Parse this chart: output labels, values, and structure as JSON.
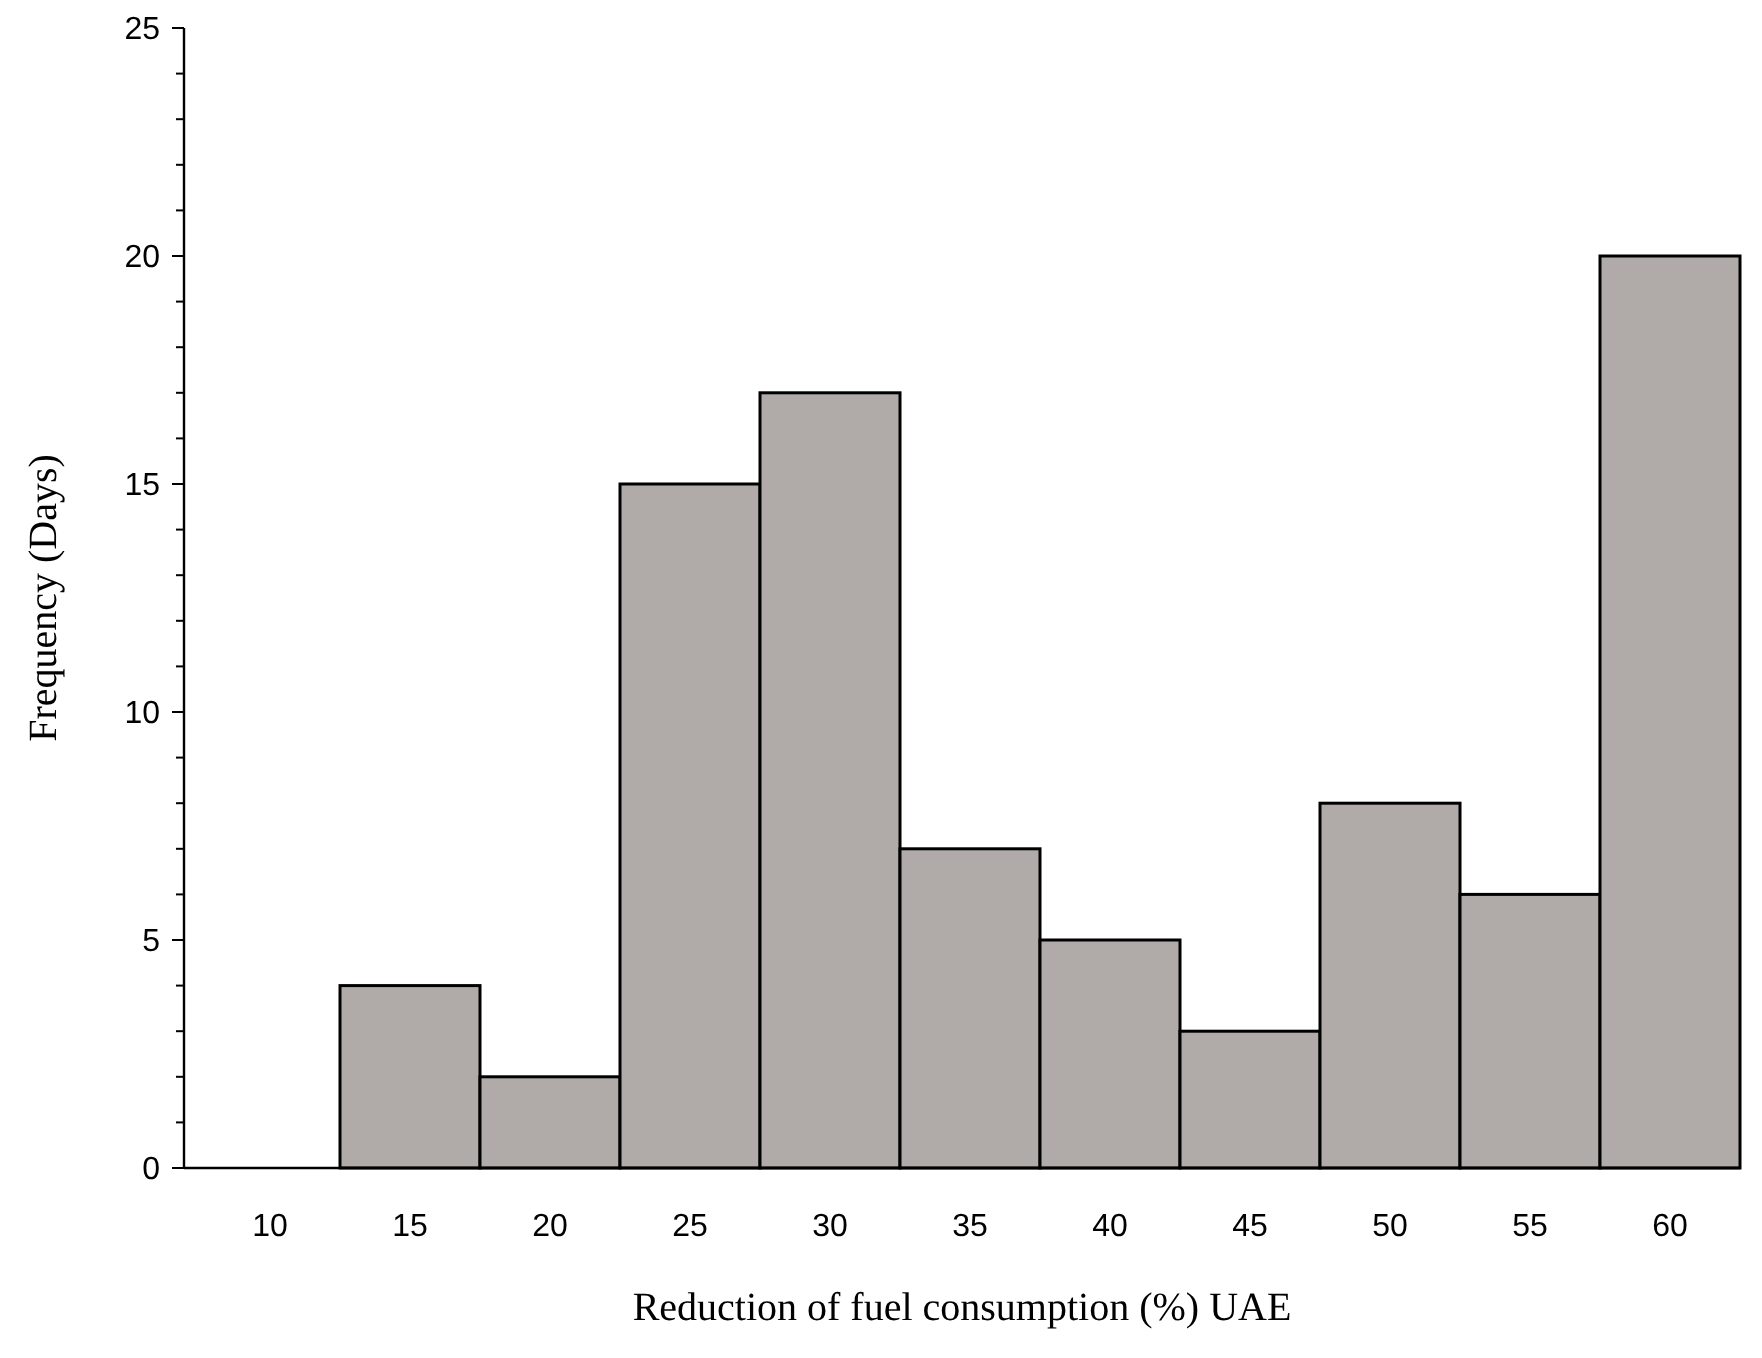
{
  "chart_data": {
    "type": "bar",
    "xlabel": "Reduction of fuel consumption (%) UAE",
    "ylabel": "Frequency (Days)",
    "categories": [
      "10",
      "15",
      "20",
      "25",
      "30",
      "35",
      "40",
      "45",
      "50",
      "55",
      "60"
    ],
    "values": [
      0,
      4,
      2,
      15,
      17,
      7,
      5,
      3,
      8,
      6,
      20
    ],
    "color": "#b0aba8",
    "ylim": [
      0,
      25
    ],
    "yticks": [
      0,
      {
        "value": 1,
        "label": null
      },
      {
        "value": 2,
        "label": null
      },
      {
        "value": 3,
        "label": null
      },
      {
        "value": 4,
        "label": null
      },
      5,
      {
        "value": 6,
        "label": null
      },
      {
        "value": 7,
        "label": null
      },
      {
        "value": 8,
        "label": null
      },
      {
        "value": 9,
        "label": null
      },
      10,
      {
        "value": 11,
        "label": null
      },
      {
        "value": 12,
        "label": null
      },
      {
        "value": 13,
        "label": null
      },
      {
        "value": 14,
        "label": null
      },
      15,
      {
        "value": 16,
        "label": null
      },
      {
        "value": 17,
        "label": null
      },
      {
        "value": 18,
        "label": null
      },
      {
        "value": 19,
        "label": null
      },
      20,
      {
        "value": 21,
        "label": null
      },
      {
        "value": 22,
        "label": null
      },
      {
        "value": 23,
        "label": null
      },
      {
        "value": 24,
        "label": null
      },
      25
    ],
    "grid": false
  }
}
